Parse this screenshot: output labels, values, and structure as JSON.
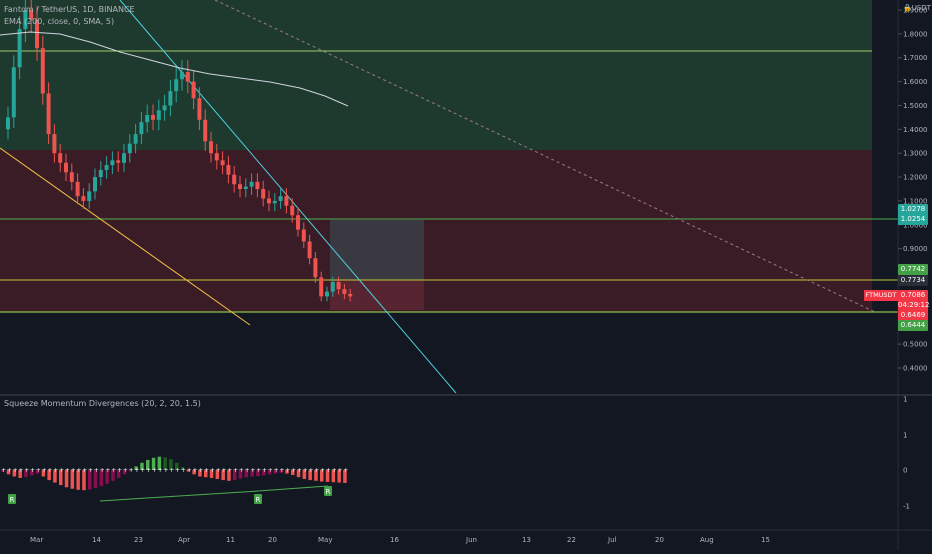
{
  "legend": {
    "title": "Fantom / TetherUS, 1D, BINANCE",
    "ema": "EMA (200, close, 0, SMA, 5)",
    "indicator": "Squeeze Momentum Divergences (20, 2, 20, 1.5)"
  },
  "price_axis": {
    "currency": "USDT",
    "ticks": [
      "1.9000",
      "1.8000",
      "1.7000",
      "1.6000",
      "1.5000",
      "1.4000",
      "1.3000",
      "1.2000",
      "1.1000",
      "1.0000",
      "0.9000",
      "0.8000",
      "0.7000",
      "0.6000",
      "0.5000",
      "0.4000"
    ],
    "tick_values": [
      1.9,
      1.8,
      1.7,
      1.6,
      1.5,
      1.4,
      1.3,
      1.2,
      1.1,
      1.0,
      0.9,
      0.8,
      0.7,
      0.6,
      0.5,
      0.4
    ]
  },
  "price_tags": {
    "t1": "1.0278",
    "t2": "1.0254",
    "t3": "0.7742",
    "t4": "0.7734",
    "ticker": "FTMUSDT",
    "current": "0.7086",
    "countdown": "04:29:12",
    "t5": "0.6469",
    "t6": "0.6444"
  },
  "osc_axis": {
    "ticks": [
      "1",
      "0",
      "-1"
    ]
  },
  "time_axis": {
    "labels": [
      "Mar",
      "14",
      "23",
      "Apr",
      "11",
      "20",
      "May",
      "16",
      "Jun",
      "13",
      "22",
      "Jul",
      "20",
      "Aug",
      "15"
    ]
  },
  "markers": {
    "label": "R"
  },
  "colors": {
    "bg": "#131722",
    "green_zone": "#1e3a2f",
    "red_zone": "#3a1c26",
    "up": "#26a69a",
    "down": "#ef5350",
    "line_green": "#4caf50",
    "line_lime": "#8bc34a",
    "cyan": "#4dd0e1",
    "yellow": "#f5c542"
  },
  "chart_data": {
    "type": "candlestick",
    "title": "Fantom / TetherUS, 1D, BINANCE",
    "x_start": "Mar",
    "ylim": [
      0.3,
      1.95
    ],
    "horizontal_levels": [
      1.73,
      1.03,
      0.774,
      0.647
    ],
    "zones": [
      {
        "from": 1.31,
        "to": 1.95,
        "color": "green"
      },
      {
        "from": 0.647,
        "to": 1.31,
        "color": "red"
      }
    ],
    "close_series": [
      1.45,
      1.66,
      1.82,
      1.9,
      1.86,
      1.74,
      1.55,
      1.38,
      1.3,
      1.26,
      1.22,
      1.18,
      1.12,
      1.1,
      1.14,
      1.2,
      1.23,
      1.25,
      1.27,
      1.26,
      1.3,
      1.34,
      1.38,
      1.43,
      1.46,
      1.44,
      1.48,
      1.5,
      1.56,
      1.61,
      1.64,
      1.6,
      1.53,
      1.44,
      1.35,
      1.3,
      1.27,
      1.25,
      1.21,
      1.17,
      1.15,
      1.16,
      1.18,
      1.15,
      1.11,
      1.09,
      1.1,
      1.12,
      1.08,
      1.04,
      0.98,
      0.93,
      0.86,
      0.78,
      0.7,
      0.72,
      0.76,
      0.73,
      0.71,
      0.7
    ],
    "current_price": 0.7086,
    "squeeze_momentum": [
      -0.05,
      -0.12,
      -0.18,
      -0.22,
      -0.2,
      -0.15,
      -0.1,
      -0.18,
      -0.28,
      -0.35,
      -0.42,
      -0.48,
      -0.52,
      -0.55,
      -0.56,
      -0.54,
      -0.5,
      -0.45,
      -0.38,
      -0.3,
      -0.22,
      -0.12,
      -0.02,
      0.1,
      0.2,
      0.28,
      0.34,
      0.37,
      0.35,
      0.3,
      0.2,
      0.08,
      -0.04,
      -0.12,
      -0.18,
      -0.2,
      -0.22,
      -0.25,
      -0.28,
      -0.3,
      -0.28,
      -0.24,
      -0.2,
      -0.18,
      -0.17,
      -0.15,
      -0.12,
      -0.1,
      -0.08,
      -0.1,
      -0.14,
      -0.2,
      -0.25,
      -0.28,
      -0.3,
      -0.32,
      -0.33,
      -0.34,
      -0.35,
      -0.36
    ]
  }
}
